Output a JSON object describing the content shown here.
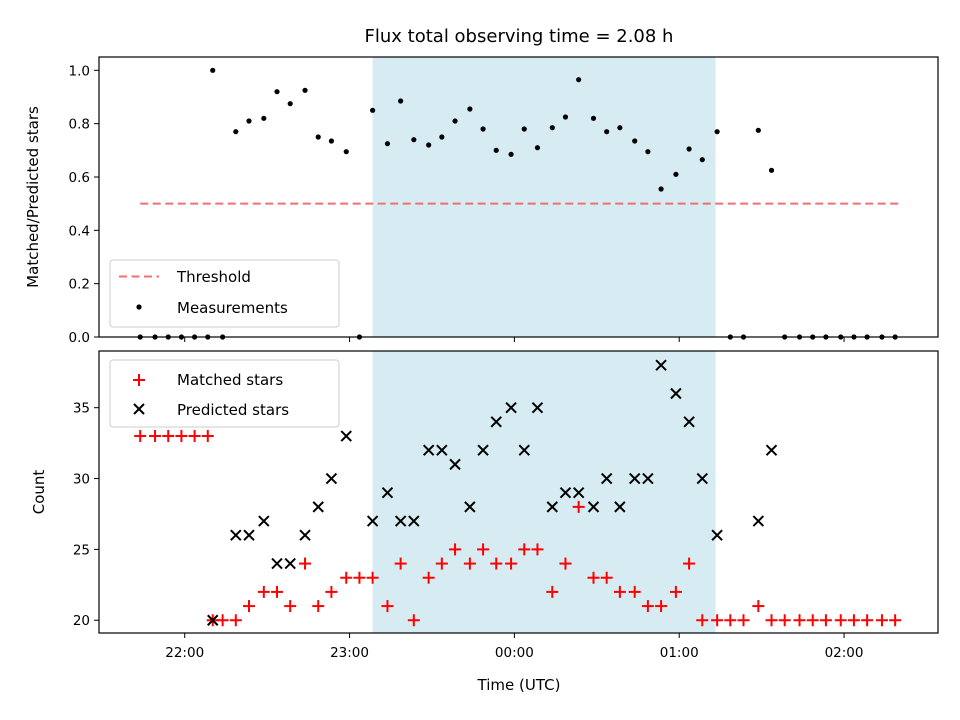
{
  "chart_data": {
    "title": "Flux total observing time = 2.08 h",
    "xlabel": "Time (UTC)",
    "x_ticks": [
      "22:00",
      "23:00",
      "00:00",
      "01:00",
      "02:00"
    ],
    "x_tick_hours": [
      22.0,
      23.0,
      24.0,
      25.0,
      26.0
    ],
    "x_range_hours": [
      21.48,
      26.57
    ],
    "shaded_interval_hours": [
      23.14,
      25.22
    ],
    "panels": [
      {
        "id": "ratio",
        "type": "scatter",
        "ylabel": "Matched/Predicted stars",
        "ylim": [
          0.0,
          1.05
        ],
        "y_ticks": [
          0.0,
          0.2,
          0.4,
          0.6,
          0.8,
          1.0
        ],
        "y_tick_labels": [
          "0.0",
          "0.2",
          "0.4",
          "0.6",
          "0.8",
          "1.0"
        ],
        "threshold": {
          "name": "Threshold",
          "value": 0.5,
          "x_start": 21.73,
          "x_end": 26.33,
          "color": "#f07070"
        },
        "legend": [
          "Threshold",
          "Measurements"
        ],
        "series": [
          {
            "name": "Measurements",
            "color": "#000000",
            "points": [
              [
                21.73,
                0.0
              ],
              [
                21.82,
                0.0
              ],
              [
                21.9,
                0.0
              ],
              [
                21.98,
                0.0
              ],
              [
                22.06,
                0.0
              ],
              [
                22.14,
                0.0
              ],
              [
                22.17,
                1.0
              ],
              [
                22.23,
                0.0
              ],
              [
                22.31,
                0.77
              ],
              [
                22.39,
                0.81
              ],
              [
                22.48,
                0.82
              ],
              [
                22.56,
                0.92
              ],
              [
                22.64,
                0.875
              ],
              [
                22.73,
                0.925
              ],
              [
                22.81,
                0.75
              ],
              [
                22.89,
                0.735
              ],
              [
                22.98,
                0.695
              ],
              [
                23.06,
                0.0
              ],
              [
                23.14,
                0.85
              ],
              [
                23.23,
                0.725
              ],
              [
                23.31,
                0.885
              ],
              [
                23.39,
                0.74
              ],
              [
                23.48,
                0.72
              ],
              [
                23.56,
                0.75
              ],
              [
                23.64,
                0.81
              ],
              [
                23.73,
                0.855
              ],
              [
                23.81,
                0.78
              ],
              [
                23.89,
                0.7
              ],
              [
                23.98,
                0.685
              ],
              [
                24.06,
                0.78
              ],
              [
                24.14,
                0.71
              ],
              [
                24.23,
                0.785
              ],
              [
                24.31,
                0.825
              ],
              [
                24.39,
                0.965
              ],
              [
                24.48,
                0.82
              ],
              [
                24.56,
                0.77
              ],
              [
                24.64,
                0.785
              ],
              [
                24.73,
                0.735
              ],
              [
                24.81,
                0.695
              ],
              [
                24.89,
                0.555
              ],
              [
                24.98,
                0.61
              ],
              [
                25.06,
                0.705
              ],
              [
                25.14,
                0.665
              ],
              [
                25.23,
                0.77
              ],
              [
                25.31,
                0.0
              ],
              [
                25.39,
                0.0
              ],
              [
                25.48,
                0.775
              ],
              [
                25.56,
                0.625
              ],
              [
                25.64,
                0.0
              ],
              [
                25.73,
                0.0
              ],
              [
                25.81,
                0.0
              ],
              [
                25.89,
                0.0
              ],
              [
                25.98,
                0.0
              ],
              [
                26.06,
                0.0
              ],
              [
                26.14,
                0.0
              ],
              [
                26.23,
                0.0
              ],
              [
                26.31,
                0.0
              ]
            ]
          }
        ]
      },
      {
        "id": "counts",
        "type": "scatter",
        "ylabel": "Count",
        "ylim": [
          19.1,
          39.0
        ],
        "y_ticks": [
          20,
          25,
          30,
          35
        ],
        "y_tick_labels": [
          "20",
          "25",
          "30",
          "35"
        ],
        "legend": [
          "Matched stars",
          "Predicted stars"
        ],
        "series": [
          {
            "name": "Matched stars",
            "marker": "plus",
            "color": "#ff0000",
            "points": [
              [
                21.73,
                33
              ],
              [
                21.82,
                33
              ],
              [
                21.9,
                33
              ],
              [
                21.98,
                33
              ],
              [
                22.06,
                33
              ],
              [
                22.14,
                33
              ],
              [
                22.17,
                20
              ],
              [
                22.23,
                20
              ],
              [
                22.31,
                20
              ],
              [
                22.39,
                21
              ],
              [
                22.48,
                22
              ],
              [
                22.56,
                22
              ],
              [
                22.64,
                21
              ],
              [
                22.73,
                24
              ],
              [
                22.81,
                21
              ],
              [
                22.89,
                22
              ],
              [
                22.98,
                23
              ],
              [
                23.06,
                23
              ],
              [
                23.14,
                23
              ],
              [
                23.23,
                21
              ],
              [
                23.31,
                24
              ],
              [
                23.39,
                20
              ],
              [
                23.48,
                23
              ],
              [
                23.56,
                24
              ],
              [
                23.64,
                25
              ],
              [
                23.73,
                24
              ],
              [
                23.81,
                25
              ],
              [
                23.89,
                24
              ],
              [
                23.98,
                24
              ],
              [
                24.06,
                25
              ],
              [
                24.14,
                25
              ],
              [
                24.23,
                22
              ],
              [
                24.31,
                24
              ],
              [
                24.39,
                28
              ],
              [
                24.48,
                23
              ],
              [
                24.56,
                23
              ],
              [
                24.64,
                22
              ],
              [
                24.73,
                22
              ],
              [
                24.81,
                21
              ],
              [
                24.89,
                21
              ],
              [
                24.98,
                22
              ],
              [
                25.06,
                24
              ],
              [
                25.14,
                20
              ],
              [
                25.23,
                20
              ],
              [
                25.31,
                20
              ],
              [
                25.39,
                20
              ],
              [
                25.48,
                21
              ],
              [
                25.56,
                20
              ],
              [
                25.64,
                20
              ],
              [
                25.73,
                20
              ],
              [
                25.81,
                20
              ],
              [
                25.89,
                20
              ],
              [
                25.98,
                20
              ],
              [
                26.06,
                20
              ],
              [
                26.14,
                20
              ],
              [
                26.23,
                20
              ],
              [
                26.31,
                20
              ]
            ]
          },
          {
            "name": "Predicted stars",
            "marker": "x",
            "color": "#000000",
            "points": [
              [
                22.17,
                20
              ],
              [
                22.31,
                26
              ],
              [
                22.39,
                26
              ],
              [
                22.48,
                27
              ],
              [
                22.56,
                24
              ],
              [
                22.64,
                24
              ],
              [
                22.73,
                26
              ],
              [
                22.81,
                28
              ],
              [
                22.89,
                30
              ],
              [
                22.98,
                33
              ],
              [
                23.14,
                27
              ],
              [
                23.23,
                29
              ],
              [
                23.31,
                27
              ],
              [
                23.39,
                27
              ],
              [
                23.48,
                32
              ],
              [
                23.56,
                32
              ],
              [
                23.64,
                31
              ],
              [
                23.73,
                28
              ],
              [
                23.81,
                32
              ],
              [
                23.89,
                34
              ],
              [
                23.98,
                35
              ],
              [
                24.06,
                32
              ],
              [
                24.14,
                35
              ],
              [
                24.23,
                28
              ],
              [
                24.31,
                29
              ],
              [
                24.39,
                29
              ],
              [
                24.48,
                28
              ],
              [
                24.56,
                30
              ],
              [
                24.64,
                28
              ],
              [
                24.73,
                30
              ],
              [
                24.81,
                30
              ],
              [
                24.89,
                38
              ],
              [
                24.98,
                36
              ],
              [
                25.06,
                34
              ],
              [
                25.14,
                30
              ],
              [
                25.23,
                26
              ],
              [
                25.48,
                27
              ],
              [
                25.56,
                32
              ]
            ]
          }
        ]
      }
    ]
  }
}
